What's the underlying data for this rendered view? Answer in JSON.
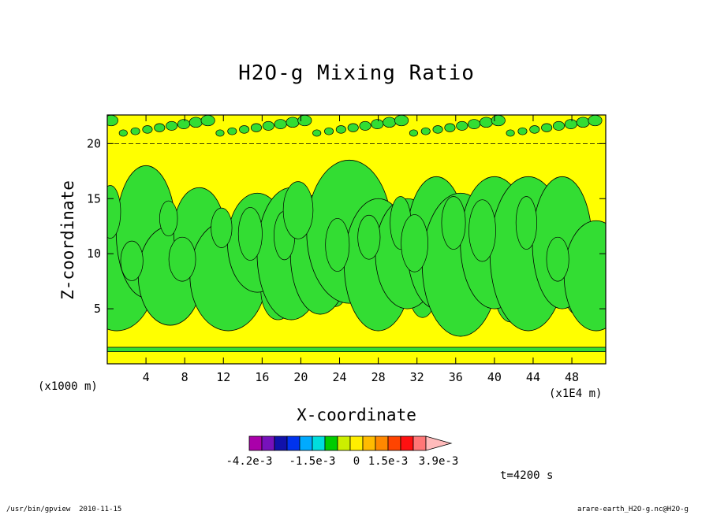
{
  "window": {
    "program": "/usr/bin/gpview",
    "date": "2010-11-15",
    "source": "arare-earth_H2O-g.nc@H2O-g"
  },
  "chart_data": {
    "type": "heatmap",
    "title": "H2O-g Mixing Ratio",
    "xlabel": "X-coordinate",
    "ylabel": "Z-coordinate",
    "x_units": "(x1E4 m)",
    "y_units": "(x1000 m)",
    "xlim": [
      0,
      51.5
    ],
    "ylim": [
      0,
      22.6
    ],
    "x_ticks": [
      4,
      8,
      12,
      16,
      20,
      24,
      28,
      32,
      36,
      40,
      44,
      48
    ],
    "y_ticks": [
      5,
      10,
      15,
      20
    ],
    "time_label": "t=4200 s",
    "background_level_color": "#ffff00",
    "anomaly_level_color": "#33dd33",
    "colorbar": {
      "colors": [
        "#aa00aa",
        "#7711bb",
        "#1111aa",
        "#0033ee",
        "#00aaff",
        "#00dddd",
        "#00cc00",
        "#ccee00",
        "#ffee00",
        "#ffbb00",
        "#ff8800",
        "#ff4400",
        "#ff1111",
        "#ff7777",
        "#ffbbbb"
      ],
      "tick_labels": [
        "-4.2e-3",
        "-1.5e-3",
        "0",
        "1.5e-3",
        "3.9e-3"
      ]
    },
    "features": {
      "layer_lines_z": [
        1.1,
        1.5
      ],
      "top_band_z": [
        20.0,
        22.6
      ],
      "plumes": [
        {
          "x": 1.0,
          "z": 8,
          "width": 1.8,
          "height": 10
        },
        {
          "x": 4.0,
          "z": 12,
          "width": 1.4,
          "height": 12
        },
        {
          "x": 6.5,
          "z": 8,
          "width": 1.5,
          "height": 9
        },
        {
          "x": 9.5,
          "z": 12,
          "width": 1.2,
          "height": 8
        },
        {
          "x": 12.5,
          "z": 8,
          "width": 1.8,
          "height": 10
        },
        {
          "x": 15.5,
          "z": 11,
          "width": 1.4,
          "height": 9
        },
        {
          "x": 19.0,
          "z": 10,
          "width": 1.6,
          "height": 12
        },
        {
          "x": 22.0,
          "z": 10,
          "width": 1.4,
          "height": 11
        },
        {
          "x": 25.0,
          "z": 12,
          "width": 2.0,
          "height": 13
        },
        {
          "x": 28.0,
          "z": 9,
          "width": 1.6,
          "height": 12
        },
        {
          "x": 31.0,
          "z": 10,
          "width": 1.5,
          "height": 10
        },
        {
          "x": 34.0,
          "z": 11,
          "width": 1.4,
          "height": 12
        },
        {
          "x": 36.5,
          "z": 9,
          "width": 1.8,
          "height": 13
        },
        {
          "x": 40.0,
          "z": 11,
          "width": 1.6,
          "height": 12
        },
        {
          "x": 43.5,
          "z": 10,
          "width": 1.8,
          "height": 14
        },
        {
          "x": 47.0,
          "z": 11,
          "width": 1.4,
          "height": 12
        },
        {
          "x": 50.5,
          "z": 8,
          "width": 1.5,
          "height": 10
        }
      ]
    }
  }
}
